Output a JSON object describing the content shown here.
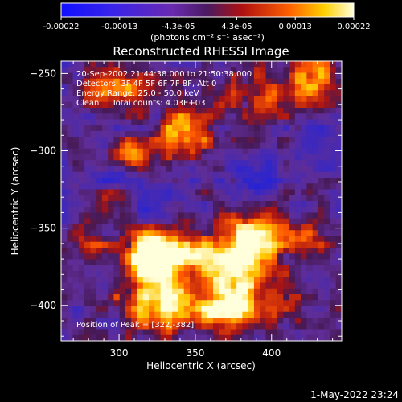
{
  "chart_data": {
    "type": "heatmap",
    "title": "Reconstructed RHESSI Image",
    "xlabel": "Heliocentric X (arcsec)",
    "ylabel": "Heliocentric Y (arcsec)",
    "xlim": [
      262,
      446
    ],
    "ylim": [
      -423,
      -242
    ],
    "x_ticks": [
      300,
      350,
      400
    ],
    "y_ticks": [
      -250,
      -300,
      -350,
      -400
    ],
    "colorbar": {
      "ticks": [
        "-0.00022",
        "-0.00013",
        "-4.3e-05",
        "4.3e-05",
        "0.00013",
        "0.00022"
      ],
      "range": [
        -0.00022,
        0.00022
      ],
      "units": "(photons cm⁻² s⁻¹ asec⁻²)"
    },
    "annotations": [
      "20-Sep-2002 21:44:38.000 to 21:50:38.000",
      "Detectors: 3F 4F 5F 6F 7F 8F, Att 0",
      "Energy Range: 25.0 - 50.0 keV",
      "Clean     Total counts: 4.03E+03"
    ],
    "peak_label": "Position of Peak = [322,-382]",
    "peak": [
      322,
      -382
    ],
    "timestamp": "1-May-2022 23:24",
    "blobs": [
      {
        "x": 325,
        "y": -384,
        "sx": 16,
        "sy": 20,
        "a": 1.0
      },
      {
        "x": 378,
        "y": -378,
        "sx": 14,
        "sy": 20,
        "a": 1.0
      },
      {
        "x": 322,
        "y": -366,
        "sx": 10,
        "sy": 8,
        "a": 0.85
      },
      {
        "x": 392,
        "y": -356,
        "sx": 14,
        "sy": 10,
        "a": 0.85
      },
      {
        "x": 360,
        "y": -402,
        "sx": 22,
        "sy": 9,
        "a": 0.7
      },
      {
        "x": 348,
        "y": -364,
        "sx": 12,
        "sy": 10,
        "a": 0.6
      },
      {
        "x": 345,
        "y": -288,
        "sx": 11,
        "sy": 10,
        "a": 0.85
      },
      {
        "x": 298,
        "y": -262,
        "sx": 16,
        "sy": 9,
        "a": 0.65
      },
      {
        "x": 400,
        "y": -263,
        "sx": 22,
        "sy": 9,
        "a": 0.6
      },
      {
        "x": 312,
        "y": -302,
        "sx": 10,
        "sy": 10,
        "a": 0.55
      },
      {
        "x": 430,
        "y": -250,
        "sx": 10,
        "sy": 8,
        "a": 0.65
      },
      {
        "x": 280,
        "y": -355,
        "sx": 8,
        "sy": 8,
        "a": 0.45
      },
      {
        "x": 425,
        "y": -360,
        "sx": 8,
        "sy": 9,
        "a": 0.45
      },
      {
        "x": 300,
        "y": -330,
        "sx": 9,
        "sy": 7,
        "a": 0.35
      },
      {
        "x": 408,
        "y": -395,
        "sx": 8,
        "sy": 8,
        "a": 0.4
      }
    ],
    "cold_spots": [
      {
        "x": 300,
        "y": -318,
        "sx": 12,
        "sy": 7,
        "a": 0.55
      },
      {
        "x": 390,
        "y": -318,
        "sx": 12,
        "sy": 8,
        "a": 0.5
      },
      {
        "x": 430,
        "y": -300,
        "sx": 8,
        "sy": 9,
        "a": 0.45
      },
      {
        "x": 325,
        "y": -338,
        "sx": 10,
        "sy": 6,
        "a": 0.4
      }
    ]
  }
}
